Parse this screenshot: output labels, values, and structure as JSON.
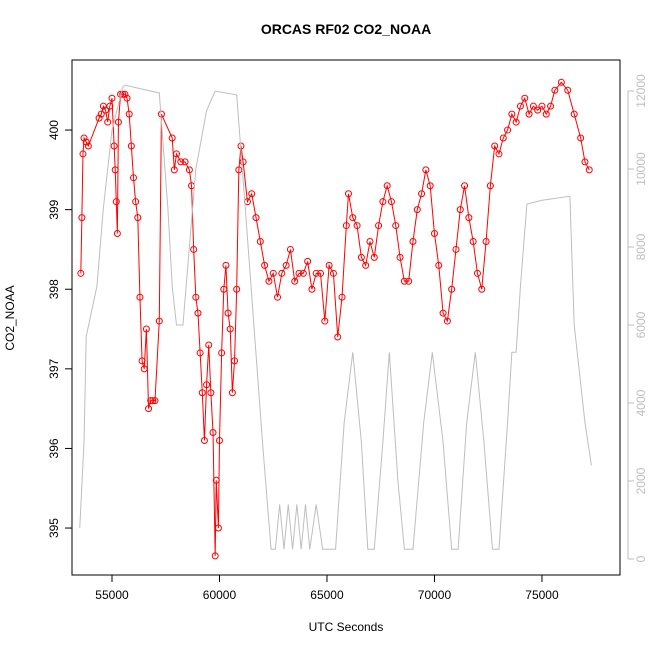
{
  "chart_data": {
    "type": "line",
    "title": "ORCAS RF02 CO2_NOAA",
    "xlabel": "UTC Seconds",
    "ylabel": "CO2_NOAA",
    "xlim": [
      53140,
      78630
    ],
    "xticks": [
      55000,
      60000,
      65000,
      70000,
      75000
    ],
    "ylim": [
      394.41,
      400.88
    ],
    "yticks": [
      395,
      396,
      397,
      398,
      399,
      400
    ],
    "y2lim": [
      -410,
      12795
    ],
    "y2ticks": [
      0,
      2000,
      4000,
      6000,
      8000,
      10000,
      12000
    ],
    "series": [
      {
        "color": "#ff0000",
        "markers": true,
        "x": [
          53550,
          53600,
          53650,
          53700,
          53800,
          53900,
          54400,
          54500,
          54600,
          54700,
          54800,
          54900,
          55000,
          55100,
          55150,
          55200,
          55250,
          55300,
          55400,
          55500,
          55600,
          55700,
          55800,
          55900,
          56000,
          56100,
          56200,
          56300,
          56400,
          56500,
          56600,
          56700,
          56800,
          56900,
          57000,
          57200,
          57300,
          57800,
          57900,
          58000,
          58200,
          58400,
          58600,
          58700,
          58800,
          58900,
          59000,
          59100,
          59200,
          59300,
          59400,
          59500,
          59600,
          59700,
          59800,
          59850,
          59950,
          60000,
          60100,
          60200,
          60300,
          60400,
          60500,
          60600,
          60700,
          60800,
          60900,
          61000,
          61100,
          61300,
          61500,
          61700,
          61900,
          62100,
          62300,
          62500,
          62700,
          62900,
          63100,
          63300,
          63500,
          63700,
          63900,
          64100,
          64300,
          64500,
          64700,
          64900,
          65100,
          65300,
          65500,
          65700,
          65900,
          66000,
          66200,
          66400,
          66600,
          66800,
          67000,
          67200,
          67400,
          67600,
          67800,
          68000,
          68200,
          68400,
          68600,
          68800,
          69000,
          69200,
          69400,
          69600,
          69800,
          70000,
          70200,
          70400,
          70600,
          70800,
          71000,
          71200,
          71400,
          71600,
          71800,
          72000,
          72200,
          72400,
          72600,
          72800,
          73000,
          73200,
          73400,
          73600,
          73800,
          74000,
          74200,
          74400,
          74600,
          74800,
          75000,
          75200,
          75400,
          75600,
          75900,
          76200,
          76500,
          76800,
          77000,
          77200
        ],
        "values": [
          398.2,
          398.9,
          399.7,
          399.9,
          399.85,
          399.8,
          400.15,
          400.2,
          400.3,
          400.25,
          400.1,
          400.3,
          400.4,
          399.8,
          399.5,
          399.1,
          398.7,
          400.1,
          400.45,
          400.45,
          400.45,
          400.4,
          400.2,
          399.8,
          399.4,
          399.1,
          398.9,
          397.9,
          397.1,
          397.0,
          397.5,
          396.5,
          396.6,
          396.6,
          396.6,
          397.6,
          400.2,
          399.9,
          399.5,
          399.7,
          399.6,
          399.6,
          399.5,
          399.3,
          398.5,
          397.9,
          397.7,
          397.2,
          396.7,
          396.1,
          396.8,
          397.3,
          396.7,
          396.2,
          394.65,
          395.6,
          395.0,
          396.1,
          397.2,
          398.0,
          398.3,
          397.7,
          397.5,
          396.7,
          397.1,
          398.0,
          399.5,
          399.8,
          399.6,
          399.1,
          399.2,
          398.9,
          398.6,
          398.3,
          398.1,
          398.2,
          397.9,
          398.2,
          398.3,
          398.5,
          398.1,
          398.2,
          398.2,
          398.35,
          398.0,
          398.2,
          398.2,
          397.6,
          398.3,
          398.2,
          397.4,
          397.9,
          398.8,
          399.2,
          398.9,
          398.8,
          398.4,
          398.3,
          398.6,
          398.4,
          398.8,
          399.1,
          399.3,
          399.1,
          398.8,
          398.4,
          398.1,
          398.1,
          398.6,
          399.0,
          399.2,
          399.5,
          399.3,
          398.7,
          398.3,
          397.7,
          397.6,
          398.0,
          398.5,
          399.0,
          399.3,
          398.9,
          398.6,
          398.2,
          398.0,
          398.6,
          399.3,
          399.8,
          399.7,
          399.9,
          400.0,
          400.2,
          400.1,
          400.3,
          400.4,
          400.2,
          400.3,
          400.25,
          400.3,
          400.2,
          400.3,
          400.5,
          400.6,
          400.5,
          400.2,
          399.9,
          399.6,
          399.5
        ]
      },
      {
        "color": "#bebebe",
        "axis": "y2",
        "x": [
          53500,
          53700,
          53800,
          54300,
          54600,
          55000,
          55500,
          55600,
          57200,
          57600,
          57800,
          58000,
          58300,
          58600,
          58900,
          59400,
          59800,
          60800,
          61200,
          61600,
          62000,
          62400,
          62600,
          62800,
          63000,
          63200,
          63400,
          63600,
          63800,
          64000,
          64200,
          64500,
          64800,
          65400,
          65800,
          66200,
          66600,
          66900,
          67200,
          67600,
          67900,
          68300,
          68600,
          69000,
          69500,
          69900,
          70400,
          70800,
          71100,
          71500,
          71900,
          72300,
          72700,
          73000,
          73400,
          73600,
          73800,
          74000,
          74300,
          75000,
          76300,
          76500,
          77000,
          77300
        ],
        "values": [
          800,
          3000,
          5700,
          7000,
          9000,
          11000,
          12100,
          12150,
          11950,
          9000,
          7000,
          6000,
          6000,
          8000,
          10000,
          11500,
          12000,
          11900,
          9000,
          6000,
          3000,
          250,
          250,
          1400,
          250,
          1400,
          250,
          1400,
          250,
          1400,
          250,
          1400,
          250,
          250,
          3500,
          5300,
          3000,
          250,
          250,
          3000,
          5300,
          2000,
          250,
          250,
          3500,
          5300,
          3000,
          250,
          250,
          3500,
          5300,
          3000,
          250,
          250,
          3500,
          5300,
          5300,
          7000,
          9100,
          9200,
          9300,
          6000,
          3500,
          2400
        ]
      }
    ]
  }
}
